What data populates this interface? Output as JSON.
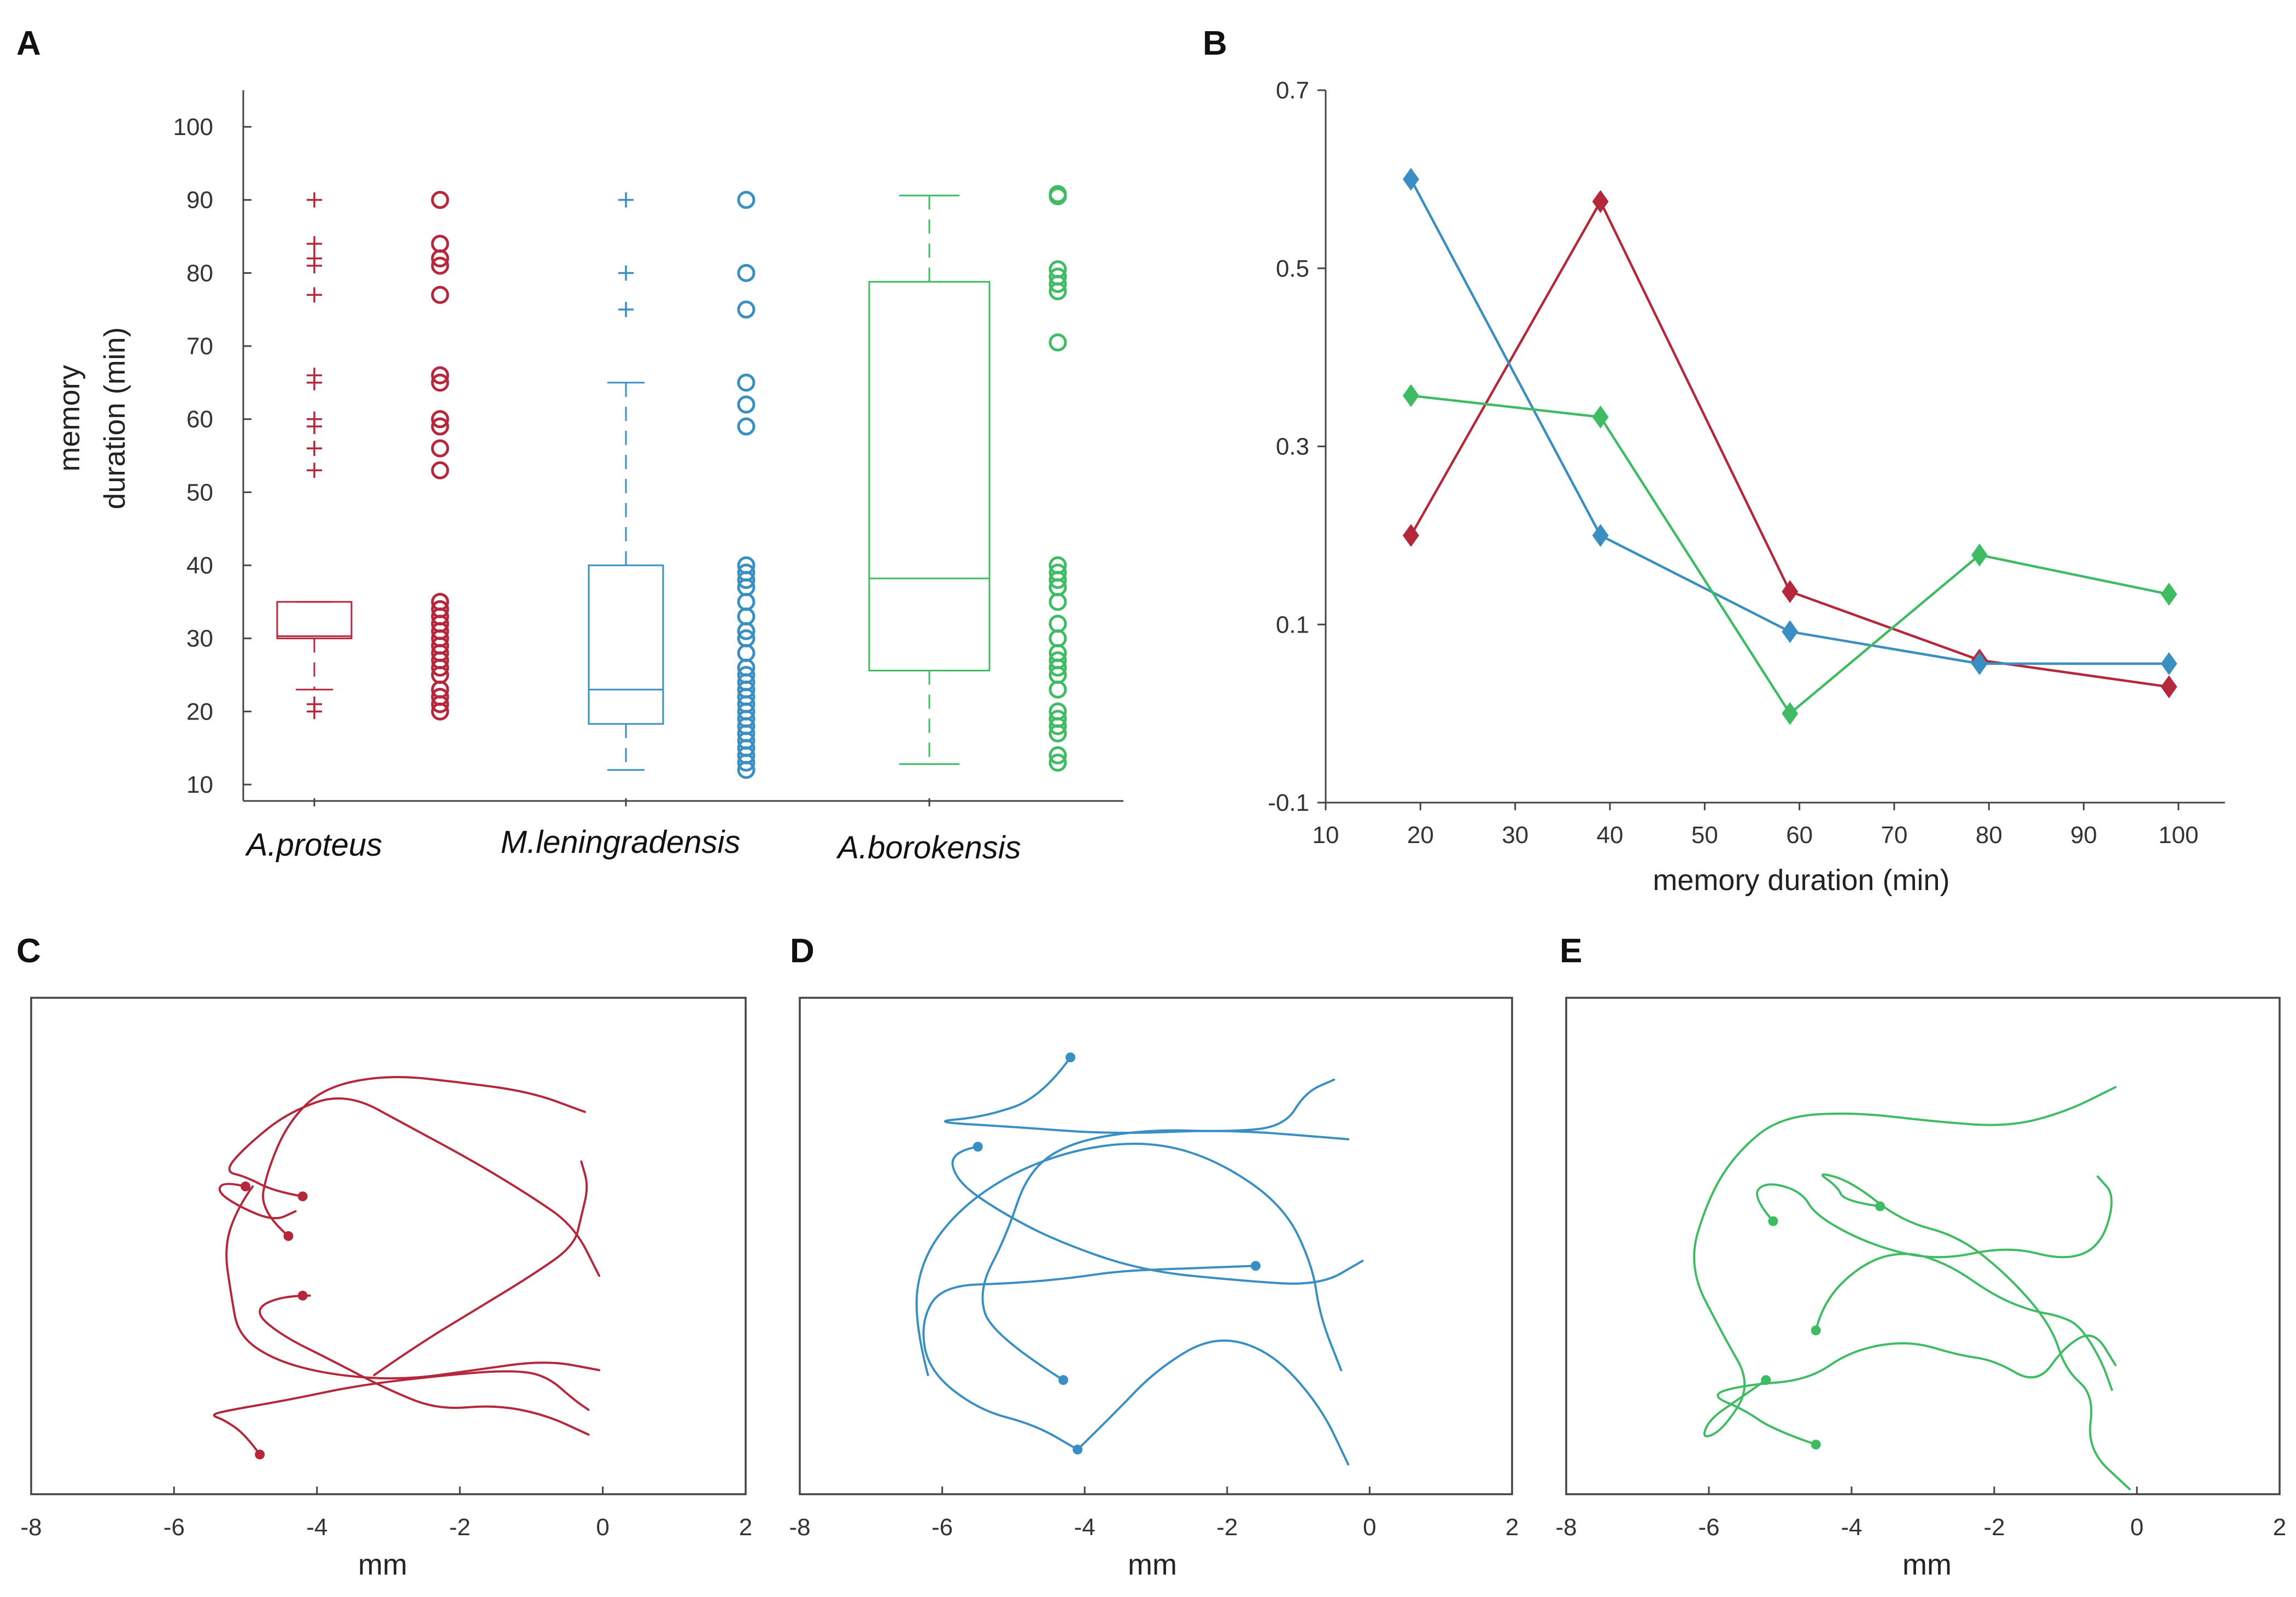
{
  "panel_letters": {
    "a": "A",
    "b": "B",
    "c": "C",
    "d": "D",
    "e": "E"
  },
  "colors": {
    "red": "#b5283b",
    "blue": "#3a8fc2",
    "green": "#3fbc63",
    "axis": "#444444"
  },
  "chart_data": [
    {
      "id": "A",
      "type": "box",
      "title": "",
      "ylabel_line1": "memory",
      "ylabel_line2": "duration (min)",
      "ylim": [
        8,
        106
      ],
      "yticks": [
        "10",
        "20",
        "30",
        "40",
        "50",
        "60",
        "70",
        "80",
        "90",
        "100"
      ],
      "groups": [
        {
          "name": "A.proteus",
          "color": "#b5283b",
          "box": {
            "q1": 30,
            "median": 30.3,
            "q3": 35,
            "lower_whisker": 23,
            "upper_whisker": 35
          },
          "outliers": [
            20,
            21,
            53,
            56,
            59,
            60,
            65,
            66,
            77,
            81,
            82,
            84,
            90
          ],
          "points": [
            20,
            21,
            22,
            23,
            25,
            26,
            27,
            28,
            29,
            30,
            31,
            32,
            33,
            34,
            35,
            53,
            56,
            59,
            60,
            65,
            66,
            77,
            81,
            82,
            84,
            90
          ]
        },
        {
          "name": "M.leningradensis",
          "color": "#3a8fc2",
          "box": {
            "q1": 18.3,
            "median": 23,
            "q3": 40,
            "lower_whisker": 12,
            "upper_whisker": 65
          },
          "outliers": [
            75,
            80,
            90
          ],
          "points": [
            12,
            13,
            14,
            15,
            16,
            17,
            18,
            19,
            20,
            21,
            22,
            23,
            24,
            25,
            26,
            28,
            30,
            31,
            33,
            35,
            37,
            38,
            39,
            40,
            59,
            62,
            65,
            75,
            80,
            90
          ]
        },
        {
          "name": "A.borokensis",
          "color": "#3fbc63",
          "box": {
            "q1": 25.6,
            "median": 38.2,
            "q3": 78.8,
            "lower_whisker": 12.8,
            "upper_whisker": 90.6
          },
          "outliers": [],
          "points": [
            13,
            14,
            17,
            18,
            19,
            20,
            23,
            25,
            26,
            27,
            28,
            30,
            32,
            35,
            37,
            38,
            39,
            40,
            70.5,
            77.5,
            78.5,
            79.5,
            80.5,
            90.5,
            90.8
          ]
        }
      ]
    },
    {
      "id": "B",
      "type": "line",
      "title": "",
      "xlabel": "memory duration (min)",
      "ylabel": "",
      "xlim": [
        10,
        105
      ],
      "ylim": [
        -0.1,
        0.7
      ],
      "xticks": [
        "10",
        "20",
        "30",
        "40",
        "50",
        "60",
        "70",
        "80",
        "90",
        "100"
      ],
      "yticks": [
        "-0.1",
        "0.1",
        "0.3",
        "0.5",
        "0.7"
      ],
      "x": [
        19,
        39,
        59,
        79,
        99
      ],
      "series": [
        {
          "name": "A.proteus",
          "color": "#b5283b",
          "values": [
            0.2,
            0.575,
            0.137,
            0.06,
            0.03
          ]
        },
        {
          "name": "M.leningradensis",
          "color": "#3a8fc2",
          "values": [
            0.6,
            0.2,
            0.092,
            0.056,
            0.056
          ]
        },
        {
          "name": "A.borokensis",
          "color": "#3fbc63",
          "values": [
            0.357,
            0.333,
            0.0,
            0.178,
            0.134
          ]
        }
      ]
    },
    {
      "id": "C",
      "type": "line",
      "title": "",
      "xlabel": "mm",
      "xlim": [
        -8,
        2
      ],
      "ylim": [
        -10,
        0
      ],
      "xticks": [
        "-8",
        "-6",
        "-4",
        "-2",
        "0",
        "2"
      ],
      "color": "#b5283b",
      "tracks": [
        [
          [
            -4.8,
            -9.2
          ],
          [
            -5.0,
            -8.8
          ],
          [
            -5.3,
            -8.5
          ],
          [
            -5.5,
            -8.4
          ],
          [
            -5.2,
            -8.3
          ],
          [
            -4.4,
            -8.1
          ],
          [
            -3.4,
            -7.8
          ],
          [
            -2.2,
            -7.6
          ],
          [
            -1.3,
            -7.5
          ],
          [
            -0.8,
            -7.6
          ],
          [
            -0.4,
            -8.1
          ],
          [
            -0.2,
            -8.3
          ]
        ],
        [
          [
            -4.9,
            -3.8
          ],
          [
            -5.1,
            -4.2
          ],
          [
            -5.3,
            -5.0
          ],
          [
            -5.2,
            -6.0
          ],
          [
            -5.1,
            -6.8
          ],
          [
            -4.6,
            -7.3
          ],
          [
            -3.8,
            -7.6
          ],
          [
            -2.8,
            -7.7
          ],
          [
            -1.8,
            -7.5
          ],
          [
            -0.8,
            -7.3
          ],
          [
            -0.05,
            -7.5
          ]
        ],
        [
          [
            -4.1,
            -6.0
          ],
          [
            -4.5,
            -6.0
          ],
          [
            -4.9,
            -6.3
          ],
          [
            -4.5,
            -6.8
          ],
          [
            -3.8,
            -7.3
          ],
          [
            -3.0,
            -7.9
          ],
          [
            -2.3,
            -8.3
          ],
          [
            -1.5,
            -8.2
          ],
          [
            -0.8,
            -8.4
          ],
          [
            -0.2,
            -8.8
          ]
        ],
        [
          [
            -4.4,
            -4.8
          ],
          [
            -4.8,
            -4.3
          ],
          [
            -4.7,
            -3.5
          ],
          [
            -4.4,
            -2.5
          ],
          [
            -3.9,
            -1.8
          ],
          [
            -3.0,
            -1.55
          ],
          [
            -2.0,
            -1.7
          ],
          [
            -1.0,
            -1.9
          ],
          [
            -0.25,
            -2.3
          ]
        ],
        [
          [
            -4.2,
            -4.0
          ],
          [
            -4.6,
            -3.9
          ],
          [
            -5.0,
            -3.6
          ],
          [
            -5.3,
            -3.5
          ],
          [
            -5.0,
            -3.0
          ],
          [
            -4.4,
            -2.3
          ],
          [
            -3.6,
            -1.9
          ],
          [
            -2.7,
            -2.6
          ],
          [
            -1.8,
            -3.3
          ],
          [
            -1.0,
            -4.0
          ],
          [
            -0.4,
            -4.6
          ],
          [
            -0.05,
            -5.6
          ]
        ],
        [
          [
            -5.0,
            -3.8
          ],
          [
            -5.3,
            -3.7
          ],
          [
            -5.4,
            -3.9
          ],
          [
            -5.1,
            -4.2
          ],
          [
            -4.6,
            -4.5
          ],
          [
            -4.3,
            -4.3
          ]
        ],
        [
          [
            -3.2,
            -7.6
          ],
          [
            -2.6,
            -7.0
          ],
          [
            -1.8,
            -6.3
          ],
          [
            -1.0,
            -5.6
          ],
          [
            -0.4,
            -5.0
          ],
          [
            -0.3,
            -4.4
          ],
          [
            -0.2,
            -3.8
          ],
          [
            -0.3,
            -3.3
          ]
        ]
      ],
      "endpoints": [
        [
          -4.8,
          -9.2
        ],
        [
          -4.4,
          -4.8
        ],
        [
          -4.2,
          -6.0
        ],
        [
          -4.2,
          -4.0
        ],
        [
          -5.0,
          -3.8
        ]
      ]
    },
    {
      "id": "D",
      "type": "line",
      "title": "",
      "xlabel": "mm",
      "xlim": [
        -8,
        2
      ],
      "ylim": [
        -10,
        0
      ],
      "xticks": [
        "-8",
        "-6",
        "-4",
        "-2",
        "0",
        "2"
      ],
      "color": "#3a8fc2",
      "tracks": [
        [
          [
            -4.2,
            -1.2
          ],
          [
            -4.6,
            -2.0
          ],
          [
            -5.4,
            -2.4
          ],
          [
            -6.2,
            -2.5
          ],
          [
            -5.0,
            -2.6
          ],
          [
            -3.6,
            -2.75
          ],
          [
            -2.0,
            -2.65
          ],
          [
            -0.3,
            -2.85
          ]
        ],
        [
          [
            -5.5,
            -3.0
          ],
          [
            -5.9,
            -3.1
          ],
          [
            -5.8,
            -3.7
          ],
          [
            -5.2,
            -4.3
          ],
          [
            -4.4,
            -4.9
          ],
          [
            -3.2,
            -5.5
          ],
          [
            -1.8,
            -5.7
          ],
          [
            -0.7,
            -5.8
          ],
          [
            -0.1,
            -5.3
          ]
        ],
        [
          [
            -1.6,
            -5.4
          ],
          [
            -2.5,
            -5.45
          ],
          [
            -3.5,
            -5.5
          ],
          [
            -4.2,
            -5.65
          ],
          [
            -5.0,
            -5.75
          ],
          [
            -6.0,
            -5.8
          ],
          [
            -6.3,
            -6.5
          ],
          [
            -6.2,
            -7.5
          ],
          [
            -5.5,
            -8.3
          ],
          [
            -4.7,
            -8.6
          ],
          [
            -4.1,
            -9.1
          ]
        ],
        [
          [
            -4.3,
            -7.7
          ],
          [
            -5.3,
            -6.8
          ],
          [
            -5.5,
            -5.9
          ],
          [
            -5.1,
            -4.8
          ],
          [
            -4.8,
            -3.5
          ],
          [
            -4.2,
            -2.9
          ],
          [
            -3.1,
            -2.65
          ],
          [
            -2.0,
            -2.7
          ],
          [
            -1.2,
            -2.6
          ],
          [
            -0.9,
            -1.9
          ],
          [
            -0.5,
            -1.65
          ]
        ],
        [
          [
            -6.2,
            -7.6
          ],
          [
            -6.4,
            -6.5
          ],
          [
            -6.3,
            -5.3
          ],
          [
            -5.8,
            -4.3
          ],
          [
            -5.0,
            -3.5
          ],
          [
            -4.0,
            -3.0
          ],
          [
            -3.0,
            -2.9
          ],
          [
            -2.1,
            -3.3
          ],
          [
            -1.2,
            -4.2
          ],
          [
            -0.8,
            -5.4
          ],
          [
            -0.7,
            -6.4
          ],
          [
            -0.4,
            -7.5
          ]
        ],
        [
          [
            -4.1,
            -9.1
          ],
          [
            -3.6,
            -8.4
          ],
          [
            -3.0,
            -7.5
          ],
          [
            -2.2,
            -6.8
          ],
          [
            -1.4,
            -7.1
          ],
          [
            -0.7,
            -8.2
          ],
          [
            -0.3,
            -9.4
          ]
        ]
      ],
      "endpoints": [
        [
          -4.2,
          -1.2
        ],
        [
          -5.5,
          -3.0
        ],
        [
          -1.6,
          -5.4
        ],
        [
          -4.3,
          -7.7
        ],
        [
          -4.1,
          -9.1
        ]
      ]
    },
    {
      "id": "E",
      "type": "line",
      "title": "",
      "xlabel": "mm",
      "xlim": [
        -8,
        2
      ],
      "ylim": [
        -10,
        0
      ],
      "xticks": [
        "-8",
        "-6",
        "-4",
        "-2",
        "0",
        "2"
      ],
      "color": "#3fbc63",
      "tracks": [
        [
          [
            -5.1,
            -4.5
          ],
          [
            -5.4,
            -4.0
          ],
          [
            -5.2,
            -3.7
          ],
          [
            -4.7,
            -3.9
          ],
          [
            -4.5,
            -4.4
          ],
          [
            -3.7,
            -5.0
          ],
          [
            -2.8,
            -5.3
          ],
          [
            -1.8,
            -5.0
          ],
          [
            -1.0,
            -5.3
          ],
          [
            -0.5,
            -5.0
          ],
          [
            -0.3,
            -4.0
          ],
          [
            -0.55,
            -3.6
          ]
        ],
        [
          [
            -3.6,
            -4.2
          ],
          [
            -4.1,
            -4.1
          ],
          [
            -4.2,
            -3.8
          ],
          [
            -4.5,
            -3.5
          ],
          [
            -4.0,
            -3.7
          ],
          [
            -3.3,
            -4.5
          ],
          [
            -2.5,
            -4.8
          ],
          [
            -1.8,
            -5.6
          ],
          [
            -1.2,
            -6.6
          ],
          [
            -1.0,
            -7.5
          ],
          [
            -0.6,
            -8.0
          ],
          [
            -0.7,
            -9.1
          ],
          [
            -0.1,
            -9.9
          ]
        ],
        [
          [
            -4.5,
            -6.7
          ],
          [
            -4.4,
            -6.1
          ],
          [
            -3.8,
            -5.3
          ],
          [
            -3.2,
            -5.1
          ],
          [
            -2.6,
            -5.4
          ],
          [
            -2.0,
            -6.0
          ],
          [
            -1.5,
            -6.3
          ],
          [
            -1.1,
            -6.4
          ],
          [
            -0.8,
            -6.6
          ],
          [
            -0.5,
            -7.3
          ],
          [
            -0.35,
            -7.9
          ]
        ],
        [
          [
            -4.5,
            -9.0
          ],
          [
            -5.1,
            -8.7
          ],
          [
            -5.5,
            -8.3
          ],
          [
            -6.0,
            -8.0
          ],
          [
            -5.5,
            -7.8
          ],
          [
            -4.6,
            -7.7
          ],
          [
            -4.0,
            -7.1
          ],
          [
            -3.2,
            -6.9
          ],
          [
            -2.5,
            -7.2
          ],
          [
            -2.0,
            -7.3
          ],
          [
            -1.4,
            -7.8
          ],
          [
            -1.0,
            -7.0
          ],
          [
            -0.6,
            -6.7
          ],
          [
            -0.3,
            -7.4
          ]
        ],
        [
          [
            -5.2,
            -7.7
          ],
          [
            -5.6,
            -8.1
          ],
          [
            -6.0,
            -8.5
          ],
          [
            -6.1,
            -8.9
          ],
          [
            -5.8,
            -8.7
          ],
          [
            -5.4,
            -7.8
          ],
          [
            -5.8,
            -6.8
          ],
          [
            -6.3,
            -5.4
          ],
          [
            -6.0,
            -4.0
          ],
          [
            -5.6,
            -3.1
          ],
          [
            -5.0,
            -2.4
          ],
          [
            -4.0,
            -2.3
          ],
          [
            -2.8,
            -2.5
          ],
          [
            -1.8,
            -2.6
          ],
          [
            -1.0,
            -2.3
          ],
          [
            -0.3,
            -1.8
          ]
        ]
      ],
      "endpoints": [
        [
          -5.1,
          -4.5
        ],
        [
          -3.6,
          -4.2
        ],
        [
          -4.5,
          -6.7
        ],
        [
          -4.5,
          -9.0
        ],
        [
          -5.2,
          -7.7
        ]
      ]
    }
  ]
}
